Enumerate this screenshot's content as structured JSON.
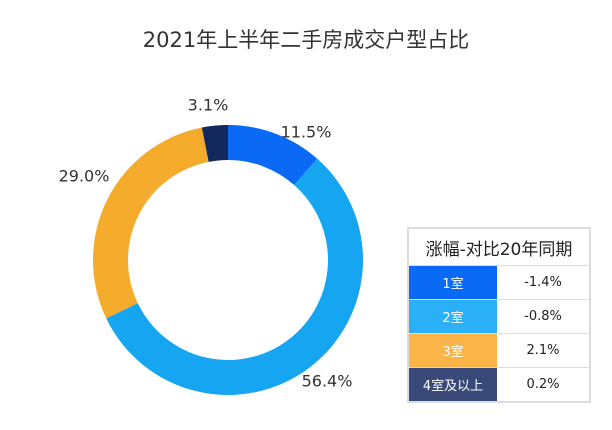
{
  "chart_data": {
    "type": "pie",
    "title": "2021年上半年二手房成交户型占比",
    "categories": [
      "1室",
      "2室",
      "3室",
      "4室及以上"
    ],
    "values": [
      11.5,
      56.4,
      29.0,
      3.1
    ],
    "value_labels": [
      "11.5%",
      "56.4%",
      "29.0%",
      "3.1%"
    ],
    "colors": [
      "#0a6af5",
      "#16a5f0",
      "#f5ac2c",
      "#13285c"
    ],
    "donut": true
  },
  "table": {
    "header": "涨幅-对比20年同期",
    "rows": [
      {
        "label": "1室",
        "value": "-1.4%",
        "color": "#0a6af5"
      },
      {
        "label": "2室",
        "value": "-0.8%",
        "color": "#2ab0f7"
      },
      {
        "label": "3室",
        "value": "2.1%",
        "color": "#fbb447"
      },
      {
        "label": "4室及以上",
        "value": "0.2%",
        "color": "#3a4a78"
      }
    ]
  }
}
